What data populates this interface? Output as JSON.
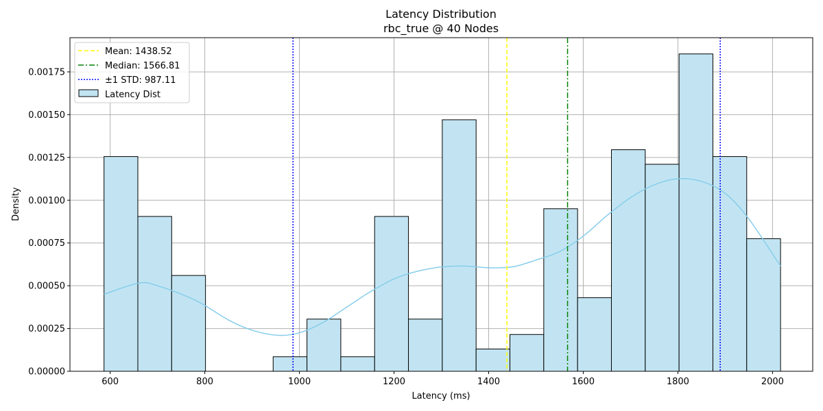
{
  "chart_data": {
    "type": "bar",
    "title": "Latency Distribution",
    "subtitle": "rbc_true @ 40 Nodes",
    "xlabel": "Latency (ms)",
    "ylabel": "Density",
    "xlim": [
      515,
      2085
    ],
    "ylim": [
      0,
      0.00195
    ],
    "xticks": [
      600,
      800,
      1000,
      1200,
      1400,
      1600,
      1800,
      2000
    ],
    "xtick_labels": [
      "600",
      "800",
      "1000",
      "1200",
      "1400",
      "1600",
      "1800",
      "2000"
    ],
    "yticks": [
      0,
      0.00025,
      0.0005,
      0.00075,
      0.001,
      0.00125,
      0.0015,
      0.00175
    ],
    "ytick_labels": [
      "0.00000",
      "0.00025",
      "0.00050",
      "0.00075",
      "0.00100",
      "0.00125",
      "0.00150",
      "0.00175"
    ],
    "grid": true,
    "legend_position": "top-left",
    "bins": [
      {
        "x0": 587,
        "x1": 658.5,
        "density": 0.001255
      },
      {
        "x0": 658.5,
        "x1": 730,
        "density": 0.000905
      },
      {
        "x0": 730,
        "x1": 801.5,
        "density": 0.00056
      },
      {
        "x0": 801.5,
        "x1": 873,
        "density": 0
      },
      {
        "x0": 873,
        "x1": 944.5,
        "density": 0
      },
      {
        "x0": 944.5,
        "x1": 1016,
        "density": 8.5e-05
      },
      {
        "x0": 1016,
        "x1": 1087.5,
        "density": 0.000305
      },
      {
        "x0": 1087.5,
        "x1": 1159,
        "density": 8.5e-05
      },
      {
        "x0": 1159,
        "x1": 1230.5,
        "density": 0.000905
      },
      {
        "x0": 1230.5,
        "x1": 1302,
        "density": 0.000305
      },
      {
        "x0": 1302,
        "x1": 1373.5,
        "density": 0.00147
      },
      {
        "x0": 1373.5,
        "x1": 1445,
        "density": 0.00013
      },
      {
        "x0": 1445,
        "x1": 1516.5,
        "density": 0.000215
      },
      {
        "x0": 1516.5,
        "x1": 1588,
        "density": 0.00095
      },
      {
        "x0": 1588,
        "x1": 1659.5,
        "density": 0.00043
      },
      {
        "x0": 1659.5,
        "x1": 1731,
        "density": 0.001295
      },
      {
        "x0": 1731,
        "x1": 1802.5,
        "density": 0.00121
      },
      {
        "x0": 1802.5,
        "x1": 1874,
        "density": 0.001855
      },
      {
        "x0": 1874,
        "x1": 1945.5,
        "density": 0.001255
      },
      {
        "x0": 1945.5,
        "x1": 2017,
        "density": 0.000775
      }
    ],
    "kde": {
      "x": [
        587,
        660,
        700,
        780,
        850,
        900,
        955,
        1000,
        1050,
        1100,
        1150,
        1200,
        1250,
        1300,
        1350,
        1400,
        1450,
        1500,
        1550,
        1600,
        1650,
        1700,
        1750,
        1800,
        1850,
        1900,
        1950,
        2017
      ],
      "y": [
        0.00045,
        0.000515,
        0.0005,
        0.000415,
        0.0003,
        0.00024,
        0.00021,
        0.000225,
        0.000285,
        0.000375,
        0.000465,
        0.00054,
        0.000585,
        0.00061,
        0.000615,
        0.000605,
        0.00061,
        0.00065,
        0.0007,
        0.00079,
        0.00091,
        0.001015,
        0.00109,
        0.001125,
        0.00111,
        0.00104,
        0.00089,
        0.000615
      ]
    },
    "lines": {
      "mean": {
        "value": 1438.52,
        "label": "Mean: 1438.52"
      },
      "median": {
        "value": 1566.81,
        "label": "Median: 1566.81"
      },
      "std": {
        "values": [
          986.5,
          1889.5
        ],
        "label": "±1 STD: 987.11"
      }
    },
    "hist_label": "Latency Dist",
    "colors": {
      "bar_fill": "#c2e4f2",
      "bar_edge": "#000000",
      "kde": "#87ceeb",
      "mean": "#ffff00",
      "median": "#008000",
      "std": "#0000ff",
      "grid": "#b0b0b0"
    }
  }
}
